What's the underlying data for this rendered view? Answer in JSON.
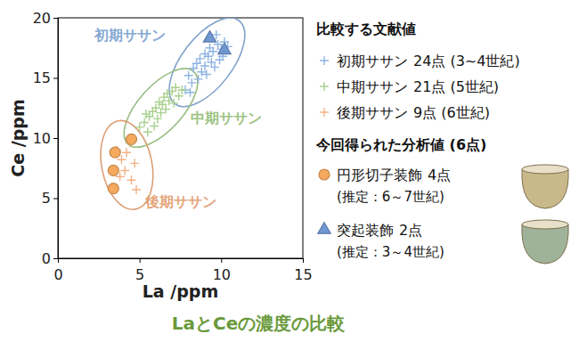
{
  "chart_data": {
    "type": "scatter",
    "title": "LaとCeの濃度の比較",
    "x_label": "La /ppm",
    "y_label": "Ce /ppm",
    "xlim": [
      0,
      15
    ],
    "xticks": [
      0,
      5,
      10,
      15
    ],
    "ylim": [
      0,
      20
    ],
    "yticks": [
      0,
      5,
      10,
      15,
      20
    ],
    "grid": false,
    "legend": "right",
    "legend_titles": [
      "比較する文献値",
      "今回得られた分析値 (6点)"
    ],
    "annotations": [
      {
        "text": "初期ササン",
        "x": 4.4,
        "y": 18.5
      },
      {
        "text": "中期ササン",
        "x": 10.3,
        "y": 11.6
      },
      {
        "text": "後期ササン",
        "x": 7.5,
        "y": 4.6
      }
    ],
    "series": [
      {
        "name": "初期ササン",
        "detail": "24点 (3~4世紀)",
        "color": "#8eb4e3",
        "marker": "plus",
        "x": [
          7.8,
          8.0,
          8.2,
          8.3,
          8.5,
          8.6,
          8.7,
          8.8,
          9.0,
          9.0,
          9.1,
          9.2,
          9.3,
          9.4,
          9.5,
          9.6,
          9.7,
          9.8,
          10.0,
          10.1,
          10.2,
          10.4,
          8.1,
          9.9
        ],
        "values": [
          14.0,
          15.2,
          14.6,
          15.8,
          16.2,
          14.9,
          16.6,
          15.5,
          17.0,
          16.0,
          15.3,
          16.8,
          17.5,
          16.3,
          17.2,
          15.9,
          18.6,
          17.8,
          17.4,
          16.8,
          18.0,
          17.6,
          13.8,
          16.5
        ]
      },
      {
        "name": "中期ササン",
        "detail": "21点 (5世紀)",
        "color": "#a9d18e",
        "marker": "plus",
        "x": [
          5.0,
          5.3,
          5.5,
          5.6,
          5.8,
          5.9,
          6.0,
          6.1,
          6.2,
          6.3,
          6.4,
          6.5,
          6.6,
          6.7,
          6.8,
          7.0,
          7.1,
          7.2,
          7.4,
          7.6,
          5.4
        ],
        "values": [
          10.9,
          11.3,
          10.5,
          11.8,
          12.2,
          11.0,
          12.5,
          11.6,
          13.0,
          12.1,
          12.8,
          13.4,
          12.4,
          13.7,
          13.1,
          13.9,
          12.9,
          14.2,
          13.5,
          14.0,
          12.0
        ]
      },
      {
        "name": "後期ササン",
        "detail": "9点 (6世紀)",
        "color": "#f4b183",
        "marker": "plus",
        "x": [
          3.6,
          3.9,
          4.1,
          4.2,
          4.4,
          4.5,
          4.7,
          4.8,
          3.8
        ],
        "values": [
          9.0,
          8.2,
          7.3,
          8.8,
          9.6,
          6.5,
          7.9,
          5.7,
          6.8
        ]
      },
      {
        "name": "円形切子装飾",
        "detail": "4点",
        "note": "(推定：6～7世紀)",
        "color": "#f5a95f",
        "marker": "circle",
        "x": [
          3.5,
          3.4,
          3.4,
          4.5
        ],
        "values": [
          8.8,
          7.3,
          5.8,
          9.9
        ]
      },
      {
        "name": "突起装飾",
        "detail": "2点",
        "note": "(推定：3～4世紀)",
        "color": "#6f97d2",
        "marker": "triangle",
        "x": [
          9.3,
          10.2
        ],
        "values": [
          18.3,
          17.3
        ]
      }
    ]
  }
}
